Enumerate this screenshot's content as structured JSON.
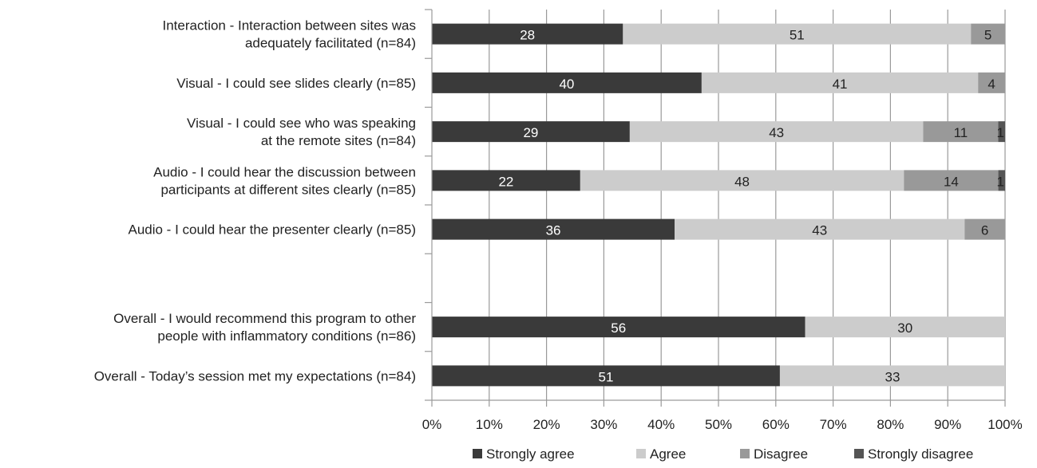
{
  "chart_data": {
    "type": "bar",
    "orientation": "horizontal",
    "stacked": "percent",
    "categories": [
      [
        "Interaction - Interaction between sites was",
        "adequately facilitated (n=84)"
      ],
      [
        "Visual - I could see slides clearly (n=85)"
      ],
      [
        "Visual - I could see who was speaking",
        "at the remote sites (n=84)"
      ],
      [
        "Audio - I could hear the discussion between",
        "participants at different sites clearly (n=85)"
      ],
      [
        "Audio - I could hear the presenter clearly (n=85)"
      ],
      [],
      [
        "Overall - I would recommend this program to other",
        "people with inflammatory conditions (n=86)"
      ],
      [
        "Overall - Today’s session met my expectations (n=84)"
      ]
    ],
    "series": [
      {
        "name": "Strongly agree",
        "color": "#3a3a3a",
        "label_color": "#ffffff",
        "values": [
          28,
          40,
          29,
          22,
          36,
          null,
          56,
          51
        ]
      },
      {
        "name": "Agree",
        "color": "#cccccc",
        "label_color": "#222222",
        "values": [
          51,
          41,
          43,
          48,
          43,
          null,
          30,
          33
        ]
      },
      {
        "name": "Disagree",
        "color": "#999999",
        "label_color": "#222222",
        "values": [
          5,
          4,
          11,
          14,
          6,
          null,
          0,
          0
        ]
      },
      {
        "name": "Strongly disagree",
        "color": "#555555",
        "label_color": "#222222",
        "values": [
          0,
          0,
          1,
          1,
          0,
          null,
          0,
          0
        ]
      }
    ],
    "x_ticks": [
      "0%",
      "10%",
      "20%",
      "30%",
      "40%",
      "50%",
      "60%",
      "70%",
      "80%",
      "90%",
      "100%"
    ],
    "xlim": [
      0,
      100
    ],
    "grid": true,
    "legend_position": "bottom"
  }
}
